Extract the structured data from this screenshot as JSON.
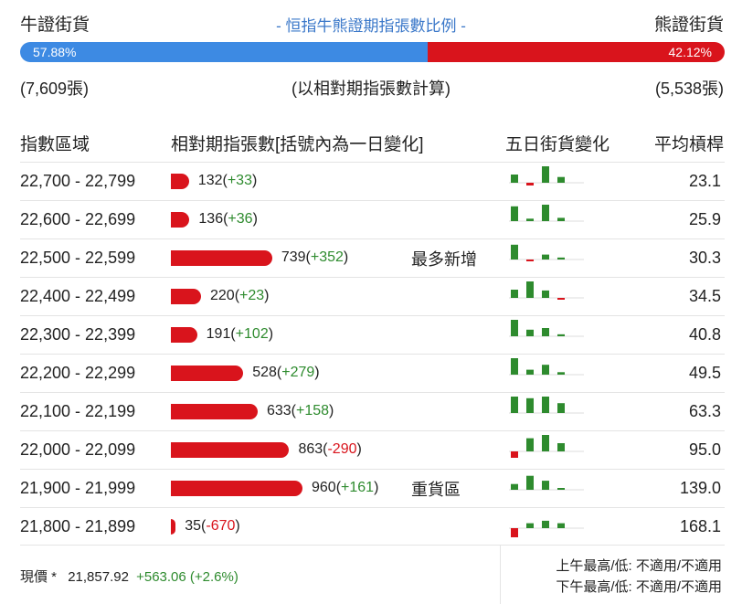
{
  "header": {
    "bull_label": "牛證街貨",
    "title": "- 恒指牛熊證期指張數比例 -",
    "bear_label": "熊證街貨"
  },
  "ratio": {
    "bull_pct_label": "57.88%",
    "bear_pct_label": "42.12%",
    "bull_fraction": 0.5788
  },
  "subheader": {
    "bull_count": "(7,609張)",
    "note": "(以相對期指張數計算)",
    "bear_count": "(5,538張)"
  },
  "columns": {
    "range": "指數區域",
    "contracts": "相對期指張數[括號內為一日變化]",
    "five_day": "五日街貨變化",
    "avg_ratio": "平均槓桿"
  },
  "colors": {
    "bull": "#3d8ae3",
    "bear": "#d9141c",
    "up": "#2e8b2e",
    "down": "#d9141c"
  },
  "rows": [
    {
      "range": "22,700 - 22,799",
      "count": "132",
      "change": "+33",
      "sign": "pos",
      "bar_value": 132,
      "note": "",
      "avg": "23.1",
      "spark": [
        0.5,
        -0.3,
        1.0,
        0.35
      ]
    },
    {
      "range": "22,600 - 22,699",
      "count": "136",
      "change": "+36",
      "sign": "pos",
      "bar_value": 136,
      "note": "",
      "avg": "25.9",
      "spark": [
        0.9,
        0.15,
        1.0,
        0.2
      ]
    },
    {
      "range": "22,500 - 22,599",
      "count": "739",
      "change": "+352",
      "sign": "pos",
      "bar_value": 739,
      "note": "最多新增",
      "avg": "30.3",
      "spark": [
        0.9,
        -0.12,
        0.3,
        0.12
      ]
    },
    {
      "range": "22,400 - 22,499",
      "count": "220",
      "change": "+23",
      "sign": "pos",
      "bar_value": 220,
      "note": "",
      "avg": "34.5",
      "spark": [
        0.5,
        1.0,
        0.45,
        -0.08
      ]
    },
    {
      "range": "22,300 - 22,399",
      "count": "191",
      "change": "+102",
      "sign": "pos",
      "bar_value": 191,
      "note": "",
      "avg": "40.8",
      "spark": [
        1.0,
        0.4,
        0.5,
        0.12
      ]
    },
    {
      "range": "22,200 - 22,299",
      "count": "528",
      "change": "+279",
      "sign": "pos",
      "bar_value": 528,
      "note": "",
      "avg": "49.5",
      "spark": [
        1.0,
        0.3,
        0.6,
        0.15
      ]
    },
    {
      "range": "22,100 - 22,199",
      "count": "633",
      "change": "+158",
      "sign": "pos",
      "bar_value": 633,
      "note": "",
      "avg": "63.3",
      "spark": [
        1.0,
        0.9,
        1.0,
        0.6
      ]
    },
    {
      "range": "22,000 - 22,099",
      "count": "863",
      "change": "-290",
      "sign": "neg",
      "bar_value": 863,
      "note": "",
      "avg": "95.0",
      "spark": [
        -0.7,
        0.8,
        1.0,
        0.5
      ]
    },
    {
      "range": "21,900 - 21,999",
      "count": "960",
      "change": "+161",
      "sign": "pos",
      "bar_value": 960,
      "note": "重貨區",
      "avg": "139.0",
      "spark": [
        0.35,
        0.85,
        0.55,
        0.1
      ]
    },
    {
      "range": "21,800 - 21,899",
      "count": "35",
      "change": "-670",
      "sign": "neg",
      "bar_value": 35,
      "note": "",
      "avg": "168.1",
      "spark": [
        -1.0,
        0.3,
        0.45,
        0.3
      ]
    }
  ],
  "footer": {
    "price_label": "現價 *",
    "price": "21,857.92",
    "change": "+563.06 (+2.6%)",
    "am_line": "上午最高/低: 不適用/不適用",
    "pm_line": "下午最高/低: 不適用/不適用"
  }
}
